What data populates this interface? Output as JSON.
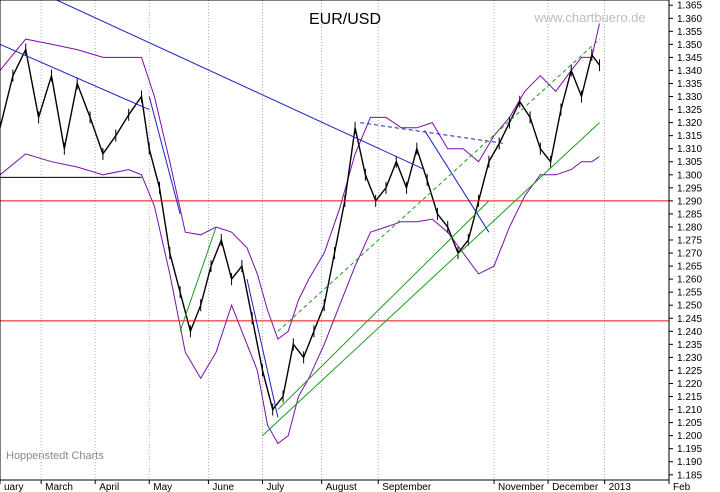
{
  "chart_data": {
    "type": "line",
    "title": "EUR/USD",
    "watermark": "www.chartbuero.de",
    "source": "Hoppenstedt Charts",
    "ylim": [
      1.183,
      1.367
    ],
    "y_ticks": [
      1.185,
      1.19,
      1.195,
      1.2,
      1.205,
      1.21,
      1.215,
      1.22,
      1.225,
      1.23,
      1.235,
      1.24,
      1.245,
      1.25,
      1.255,
      1.26,
      1.265,
      1.27,
      1.275,
      1.28,
      1.285,
      1.29,
      1.295,
      1.3,
      1.305,
      1.31,
      1.315,
      1.32,
      1.325,
      1.33,
      1.335,
      1.34,
      1.345,
      1.35,
      1.355,
      1.36,
      1.365
    ],
    "x_range": [
      0,
      233
    ],
    "x_labels": [
      {
        "label": "uary",
        "x": 0
      },
      {
        "label": "March",
        "x": 16
      },
      {
        "label": "April",
        "x": 37
      },
      {
        "label": "May",
        "x": 58
      },
      {
        "label": "June",
        "x": 81
      },
      {
        "label": "July",
        "x": 102
      },
      {
        "label": "August",
        "x": 125
      },
      {
        "label": "September",
        "x": 147
      },
      {
        "label": "November",
        "x": 192
      },
      {
        "label": "December",
        "x": 213
      },
      {
        "label": "2013",
        "x": 235
      },
      {
        "label": "Feb",
        "x": 260
      }
    ],
    "colors": {
      "price": "#000000",
      "bands": "#7a0fa8",
      "trend_blue": "#1a24c4",
      "trend_green": "#18a018",
      "support_red": "#e01010",
      "grid": "#9a9a9a"
    },
    "series": [
      {
        "role": "price",
        "x": [
          0,
          5,
          10,
          15,
          20,
          25,
          30,
          35,
          40,
          45,
          50,
          55,
          58,
          62,
          66,
          70,
          74,
          78,
          82,
          86,
          90,
          94,
          98,
          102,
          106,
          110,
          114,
          118,
          122,
          126,
          130,
          134,
          138,
          142,
          146,
          150,
          154,
          158,
          162,
          166,
          170,
          174,
          178,
          182,
          186,
          190,
          194,
          198,
          202,
          206,
          210,
          214,
          218,
          222,
          226,
          230,
          233
        ],
        "values": [
          1.318,
          1.338,
          1.348,
          1.322,
          1.338,
          1.31,
          1.335,
          1.322,
          1.308,
          1.315,
          1.323,
          1.33,
          1.31,
          1.295,
          1.27,
          1.255,
          1.24,
          1.25,
          1.265,
          1.275,
          1.26,
          1.265,
          1.245,
          1.225,
          1.21,
          1.215,
          1.235,
          1.23,
          1.24,
          1.25,
          1.27,
          1.29,
          1.318,
          1.3,
          1.29,
          1.295,
          1.305,
          1.295,
          1.31,
          1.298,
          1.285,
          1.28,
          1.27,
          1.275,
          1.29,
          1.305,
          1.312,
          1.32,
          1.328,
          1.322,
          1.31,
          1.305,
          1.325,
          1.34,
          1.33,
          1.346,
          1.342
        ]
      },
      {
        "role": "band-upper",
        "x": [
          0,
          10,
          20,
          30,
          40,
          50,
          55,
          60,
          66,
          72,
          78,
          84,
          90,
          96,
          100,
          104,
          108,
          112,
          116,
          120,
          126,
          132,
          138,
          144,
          150,
          156,
          162,
          168,
          174,
          180,
          186,
          192,
          198,
          204,
          210,
          216,
          222,
          226,
          230,
          233
        ],
        "values": [
          1.34,
          1.352,
          1.35,
          1.348,
          1.345,
          1.345,
          1.345,
          1.33,
          1.305,
          1.278,
          1.277,
          1.28,
          1.278,
          1.272,
          1.262,
          1.248,
          1.237,
          1.24,
          1.252,
          1.26,
          1.27,
          1.287,
          1.308,
          1.322,
          1.322,
          1.318,
          1.318,
          1.32,
          1.31,
          1.31,
          1.305,
          1.315,
          1.322,
          1.332,
          1.338,
          1.332,
          1.34,
          1.345,
          1.345,
          1.358
        ]
      },
      {
        "role": "band-lower",
        "x": [
          0,
          10,
          20,
          30,
          40,
          50,
          55,
          60,
          66,
          72,
          78,
          84,
          90,
          96,
          100,
          104,
          108,
          112,
          116,
          120,
          126,
          132,
          138,
          144,
          150,
          156,
          162,
          168,
          174,
          180,
          186,
          192,
          198,
          204,
          210,
          216,
          222,
          226,
          230,
          233
        ],
        "values": [
          1.3,
          1.308,
          1.305,
          1.303,
          1.3,
          1.302,
          1.3,
          1.288,
          1.262,
          1.232,
          1.222,
          1.232,
          1.25,
          1.235,
          1.225,
          1.204,
          1.197,
          1.2,
          1.215,
          1.222,
          1.235,
          1.25,
          1.265,
          1.278,
          1.28,
          1.282,
          1.282,
          1.283,
          1.278,
          1.27,
          1.262,
          1.265,
          1.28,
          1.292,
          1.3,
          1.3,
          1.302,
          1.305,
          1.305,
          1.307
        ]
      }
    ],
    "trendlines": [
      {
        "color": "blue",
        "style": "solid",
        "x": [
          22,
          165
        ],
        "values": [
          1.367,
          1.302
        ]
      },
      {
        "color": "blue",
        "style": "solid",
        "x": [
          0,
          58
        ],
        "values": [
          1.35,
          1.325
        ]
      },
      {
        "color": "blue",
        "style": "solid",
        "x": [
          58,
          70
        ],
        "values": [
          1.33,
          1.285
        ]
      },
      {
        "color": "blue",
        "style": "solid",
        "x": [
          96,
          108
        ],
        "values": [
          1.26,
          1.207
        ]
      },
      {
        "color": "blue",
        "style": "solid",
        "x": [
          165,
          190
        ],
        "values": [
          1.317,
          1.278
        ]
      },
      {
        "color": "blue",
        "style": "dashed",
        "x": [
          140,
          196
        ],
        "values": [
          1.32,
          1.312
        ]
      },
      {
        "color": "green",
        "style": "solid",
        "x": [
          102,
          233
        ],
        "values": [
          1.2,
          1.32
        ]
      },
      {
        "color": "green",
        "style": "solid",
        "x": [
          108,
          190
        ],
        "values": [
          1.21,
          1.29
        ]
      },
      {
        "color": "green",
        "style": "solid",
        "x": [
          70,
          84
        ],
        "values": [
          1.24,
          1.28
        ]
      },
      {
        "color": "green",
        "style": "dashed",
        "x": [
          108,
          233
        ],
        "values": [
          1.24,
          1.352
        ]
      },
      {
        "color": "black",
        "style": "solid",
        "x": [
          0,
          55
        ],
        "values": [
          1.299,
          1.299
        ]
      }
    ],
    "hlines": [
      {
        "y": 1.29,
        "color": "red"
      },
      {
        "y": 1.244,
        "color": "red"
      }
    ]
  }
}
